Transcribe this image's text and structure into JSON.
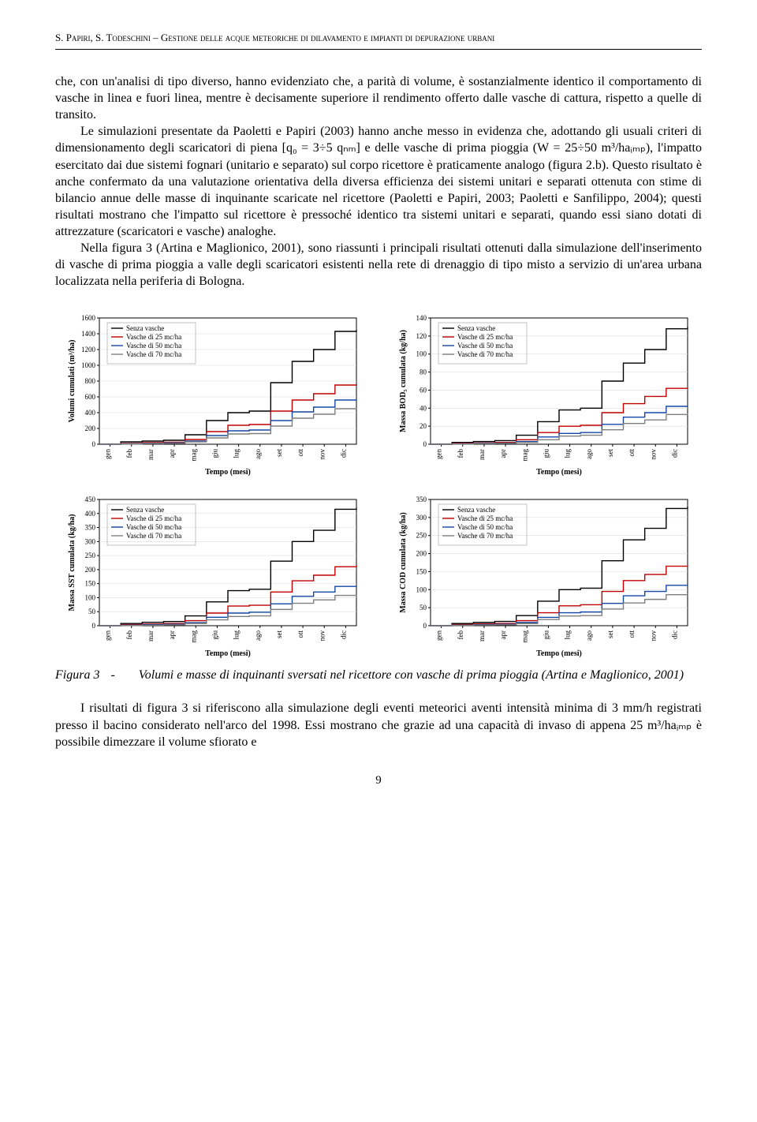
{
  "header": "S. Papiri, S. Todeschini – Gestione delle acque meteoriche di dilavamento e impianti di depurazione urbani",
  "para1_lead": "che, con un'analisi di tipo diverso, hanno evidenziato che, a parità di volume, è sostanzialmente identico il comportamento di vasche in linea e fuori linea, mentre è decisamente superiore il rendimento offerto dalle vasche di cattura, rispetto a quelle di transito.",
  "para2": "Le simulazioni presentate da Paoletti e Papiri (2003) hanno anche messo in evidenza che, adottando gli usuali criteri di dimensionamento degli scaricatori di piena [q₀ = 3÷5 qₙₘ] e delle vasche di prima pioggia (W = 25÷50 m³/haᵢₘₚ), l'impatto esercitato dai due sistemi fognari (unitario e separato) sul corpo ricettore è praticamente analogo (figura 2.b). Questo risultato è anche confermato da una valutazione orientativa della diversa efficienza dei sistemi unitari e separati ottenuta con stime di bilancio annue delle masse di inquinante scaricate nel ricettore (Paoletti e Papiri, 2003; Paoletti e Sanfilippo, 2004); questi risultati mostrano che l'impatto sul ricettore è pressoché identico tra sistemi unitari e separati, quando essi siano dotati di attrezzature (scaricatori e vasche) analoghe.",
  "para3": "Nella figura 3 (Artina e Maglionico, 2001), sono riassunti i principali risultati ottenuti dalla simulazione dell'inserimento di vasche di prima pioggia a valle degli scaricatori esistenti nella rete di drenaggio di tipo misto a servizio di un'area urbana localizzata nella periferia di Bologna.",
  "caption_num": "Figura 3",
  "caption_dash": "-",
  "caption_text": "Volumi e masse di inquinanti sversati nel ricettore con vasche di prima pioggia (Artina e Maglionico, 2001)",
  "para4": "I risultati di figura 3 si riferiscono alla simulazione degli eventi meteorici aventi intensità minima di 3 mm/h registrati presso il bacino considerato nell'arco del 1998. Essi mostrano che grazie ad una capacità di invaso di appena 25 m³/haᵢₘₚ è possibile dimezzare il volume sfiorato e",
  "page_number": "9",
  "legend_items": [
    {
      "label": "Senza vasche",
      "color": "#000000"
    },
    {
      "label": "Vasche di 25 mc/ha",
      "color": "#c00000"
    },
    {
      "label": "Vasche di 50 mc/ha",
      "color": "#1548a6"
    },
    {
      "label": "Vasche di 70 mc/ha",
      "color": "#7f7f7f"
    }
  ],
  "x_categories": [
    "gen",
    "feb",
    "mar",
    "apr",
    "mag",
    "giu",
    "lug",
    "ago",
    "set",
    "ott",
    "nov",
    "dic"
  ],
  "x_title": "Tempo (mesi)",
  "series_colors": {
    "senza": "#000000",
    "v25": "#c00000",
    "v50": "#1548a6",
    "v70": "#7f7f7f"
  },
  "line_width": 1.4,
  "background_color": "#ffffff",
  "grid_color": "#dddddd",
  "tick_fontsize": 9,
  "label_fontsize": 10,
  "legend_fontsize": 9,
  "charts": [
    {
      "id": "volumi",
      "y_title": "Volumi cumulati (m³/ha)",
      "ymin": 0,
      "ymax": 1600,
      "ytick_step": 200,
      "series": {
        "senza": [
          0,
          30,
          40,
          50,
          120,
          300,
          400,
          420,
          780,
          1050,
          1200,
          1430,
          1450
        ],
        "v25": [
          0,
          10,
          20,
          25,
          60,
          160,
          240,
          250,
          420,
          560,
          640,
          750,
          760
        ],
        "v50": [
          0,
          5,
          12,
          18,
          40,
          110,
          170,
          180,
          300,
          410,
          470,
          560,
          570
        ],
        "v70": [
          0,
          3,
          8,
          12,
          30,
          80,
          130,
          135,
          230,
          330,
          380,
          450,
          455
        ]
      }
    },
    {
      "id": "bod5",
      "y_title": "Massa BOD₅ cumulata (kg/ha)",
      "ymin": 0,
      "ymax": 140,
      "ytick_step": 20,
      "series": {
        "senza": [
          0,
          2,
          3,
          4,
          10,
          25,
          38,
          40,
          70,
          90,
          105,
          128,
          130
        ],
        "v25": [
          0,
          1,
          1.5,
          2,
          5,
          13,
          20,
          21,
          35,
          45,
          53,
          62,
          63
        ],
        "v50": [
          0,
          0.5,
          1,
          1.3,
          3,
          8,
          12,
          13,
          22,
          30,
          35,
          42,
          43
        ],
        "v70": [
          0,
          0.3,
          0.6,
          0.9,
          2,
          5,
          9,
          10,
          16,
          23,
          27,
          33,
          34
        ]
      }
    },
    {
      "id": "sst",
      "y_title": "Massa SST cumulata (kg/ha)",
      "ymin": 0,
      "ymax": 450,
      "ytick_step": 50,
      "series": {
        "senza": [
          0,
          8,
          12,
          15,
          35,
          85,
          125,
          130,
          230,
          300,
          340,
          415,
          420
        ],
        "v25": [
          0,
          4,
          6,
          8,
          18,
          45,
          70,
          73,
          120,
          160,
          180,
          210,
          215
        ],
        "v50": [
          0,
          2,
          4,
          5,
          11,
          30,
          45,
          48,
          78,
          105,
          120,
          140,
          143
        ],
        "v70": [
          0,
          1,
          2,
          3,
          8,
          21,
          33,
          35,
          58,
          80,
          92,
          108,
          110
        ]
      }
    },
    {
      "id": "cod",
      "y_title": "Massa COD cumulata (kg/ha)",
      "ymin": 0,
      "ymax": 350,
      "ytick_step": 50,
      "series": {
        "senza": [
          0,
          6,
          9,
          12,
          28,
          68,
          100,
          104,
          180,
          238,
          270,
          325,
          330
        ],
        "v25": [
          0,
          3,
          5,
          6,
          14,
          36,
          55,
          58,
          95,
          125,
          142,
          165,
          168
        ],
        "v50": [
          0,
          1.5,
          3,
          4,
          9,
          23,
          36,
          38,
          62,
          83,
          95,
          112,
          115
        ],
        "v70": [
          0,
          1,
          2,
          2.5,
          6,
          17,
          27,
          28,
          46,
          63,
          73,
          86,
          88
        ]
      }
    }
  ]
}
